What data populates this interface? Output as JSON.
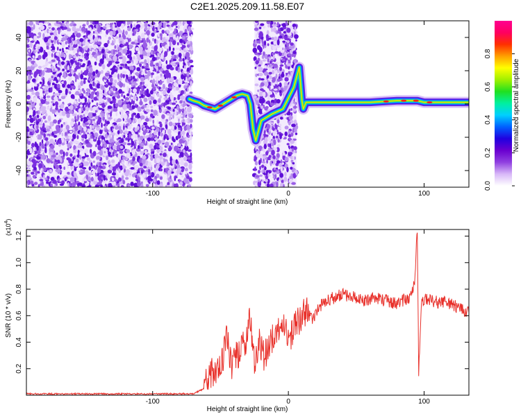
{
  "figure": {
    "title": "C2E1.2025.209.11.58.E07"
  },
  "chart_data": [
    {
      "type": "heatmap",
      "xlabel": "Height of straight line (km)",
      "ylabel": "Frequency (Hz)",
      "xlim": [
        -193,
        133
      ],
      "ylim": [
        -50,
        50
      ],
      "xticks": [
        -100,
        0,
        100
      ],
      "yticks": [
        -40,
        -20,
        0,
        20,
        40
      ],
      "grid": false,
      "colorbar": {
        "label": "Normalized spectral amplitude",
        "range": [
          0,
          1
        ],
        "ticks": [
          "0.0",
          "0.2",
          "0.4",
          "0.6",
          "0.8"
        ],
        "colors": [
          "#ffffff",
          "#d8b8f8",
          "#9040e0",
          "#6a00d0",
          "#2000e0",
          "#0060ff",
          "#00d0ff",
          "#00f0a0",
          "#20e020",
          "#a0f000",
          "#ffff00",
          "#ffa000",
          "#ff3000",
          "#ff0060",
          "#ff0090"
        ]
      },
      "noise_regions": [
        [
          -193,
          -71
        ],
        [
          -25,
          6
        ]
      ],
      "signal_track": [
        [
          -73,
          3
        ],
        [
          -70,
          2
        ],
        [
          -66,
          1
        ],
        [
          -62,
          -1
        ],
        [
          -58,
          -2
        ],
        [
          -54,
          -3
        ],
        [
          -50,
          -1
        ],
        [
          -46,
          1
        ],
        [
          -42,
          3
        ],
        [
          -38,
          5
        ],
        [
          -34,
          6
        ],
        [
          -30,
          5
        ],
        [
          -28,
          0
        ],
        [
          -26,
          -15
        ],
        [
          -24,
          -22
        ],
        [
          -20,
          -10
        ],
        [
          -12,
          -6
        ],
        [
          -4,
          -3
        ],
        [
          4,
          10
        ],
        [
          6,
          16
        ],
        [
          8,
          22
        ],
        [
          9,
          12
        ],
        [
          10,
          2
        ],
        [
          11,
          -3
        ],
        [
          13,
          1
        ],
        [
          20,
          1
        ],
        [
          40,
          1
        ],
        [
          60,
          1
        ],
        [
          70,
          1.5
        ],
        [
          80,
          2
        ],
        [
          90,
          2
        ],
        [
          95,
          2
        ],
        [
          100,
          1
        ],
        [
          110,
          1
        ],
        [
          120,
          1
        ],
        [
          133,
          1
        ]
      ]
    },
    {
      "type": "line",
      "xlabel": "Height of straight line (km)",
      "ylabel": "SNR (10 * v/v)",
      "yscale_label": "(x10",
      "yscale_exponent": "4",
      "yscale_close": ")",
      "xlim": [
        -193,
        133
      ],
      "ylim": [
        0,
        1.25
      ],
      "xticks": [
        -100,
        0,
        100
      ],
      "yticks": [
        "0.2",
        "0.4",
        "0.6",
        "0.8",
        "1.0",
        "1.2"
      ],
      "grid": false,
      "series": [
        {
          "color": "#e8302a",
          "points": [
            [
              -193,
              0.01
            ],
            [
              -160,
              0.01
            ],
            [
              -120,
              0.01
            ],
            [
              -90,
              0.01
            ],
            [
              -70,
              0.01
            ],
            [
              -62,
              0.05
            ],
            [
              -58,
              0.15
            ],
            [
              -52,
              0.22
            ],
            [
              -48,
              0.28
            ],
            [
              -45,
              0.45
            ],
            [
              -42,
              0.2
            ],
            [
              -38,
              0.3
            ],
            [
              -34,
              0.38
            ],
            [
              -30,
              0.45
            ],
            [
              -28,
              0.6
            ],
            [
              -25,
              0.25
            ],
            [
              -22,
              0.4
            ],
            [
              -18,
              0.3
            ],
            [
              -14,
              0.38
            ],
            [
              -10,
              0.45
            ],
            [
              -6,
              0.55
            ],
            [
              -2,
              0.5
            ],
            [
              2,
              0.45
            ],
            [
              6,
              0.55
            ],
            [
              10,
              0.6
            ],
            [
              14,
              0.62
            ],
            [
              18,
              0.58
            ],
            [
              22,
              0.65
            ],
            [
              26,
              0.7
            ],
            [
              30,
              0.72
            ],
            [
              35,
              0.74
            ],
            [
              40,
              0.76
            ],
            [
              45,
              0.75
            ],
            [
              50,
              0.74
            ],
            [
              55,
              0.72
            ],
            [
              60,
              0.72
            ],
            [
              65,
              0.74
            ],
            [
              70,
              0.72
            ],
            [
              75,
              0.7
            ],
            [
              80,
              0.7
            ],
            [
              85,
              0.72
            ],
            [
              90,
              0.74
            ],
            [
              93,
              0.85
            ],
            [
              95,
              1.25
            ],
            [
              96,
              0.15
            ],
            [
              98,
              0.7
            ],
            [
              100,
              0.72
            ],
            [
              105,
              0.72
            ],
            [
              110,
              0.7
            ],
            [
              115,
              0.7
            ],
            [
              120,
              0.68
            ],
            [
              125,
              0.66
            ],
            [
              130,
              0.64
            ],
            [
              133,
              0.62
            ]
          ]
        }
      ]
    }
  ]
}
